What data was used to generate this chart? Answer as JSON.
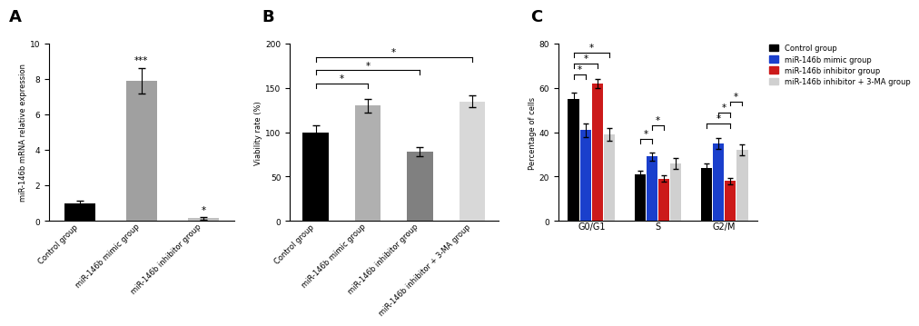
{
  "panel_A": {
    "categories": [
      "Control group",
      "miR-146b mimic group",
      "miR-146b inhibitor group"
    ],
    "values": [
      1.0,
      7.9,
      0.15
    ],
    "errors": [
      0.15,
      0.7,
      0.08
    ],
    "colors": [
      "#000000",
      "#a0a0a0",
      "#c0c0c0"
    ],
    "ylabel": "miR-146b mRNA relative expression",
    "ylim": [
      0,
      10
    ],
    "yticks": [
      0,
      2,
      4,
      6,
      8,
      10
    ],
    "panel_label": "A"
  },
  "panel_B": {
    "categories": [
      "Control group",
      "miR-146b mimic group",
      "miR-146b inhibitor group",
      "miR-146b inhibitor + 3-MA group"
    ],
    "values": [
      100,
      130,
      78,
      135
    ],
    "errors": [
      8,
      8,
      5,
      7
    ],
    "colors": [
      "#000000",
      "#b0b0b0",
      "#808080",
      "#d8d8d8"
    ],
    "ylabel": "Viability rate (%)",
    "ylim": [
      0,
      200
    ],
    "yticks": [
      0,
      50,
      100,
      150,
      200
    ],
    "panel_label": "B"
  },
  "panel_C": {
    "groups": [
      "G0/G1",
      "S",
      "G2/M"
    ],
    "series": [
      {
        "name": "Control group",
        "color": "#000000",
        "values": [
          55,
          21,
          24
        ],
        "errors": [
          3,
          1.5,
          2
        ]
      },
      {
        "name": "miR-146b mimic group",
        "color": "#1a3fcc",
        "values": [
          41,
          29,
          35
        ],
        "errors": [
          3,
          2,
          2.5
        ]
      },
      {
        "name": "miR-146b inhibitor group",
        "color": "#cc1a1a",
        "values": [
          62,
          19,
          18
        ],
        "errors": [
          2,
          1.5,
          1.5
        ]
      },
      {
        "name": "miR-146b inhibitor + 3-MA group",
        "color": "#d0d0d0",
        "values": [
          39,
          26,
          32
        ],
        "errors": [
          3,
          2.5,
          2.5
        ]
      }
    ],
    "ylabel": "Percentage of cells",
    "ylim": [
      0,
      80
    ],
    "yticks": [
      0,
      20,
      40,
      60,
      80
    ],
    "panel_label": "C"
  },
  "bg_color": "#ffffff",
  "font_size": 6.5,
  "tick_font_size": 6.5,
  "label_fontsize": 13
}
